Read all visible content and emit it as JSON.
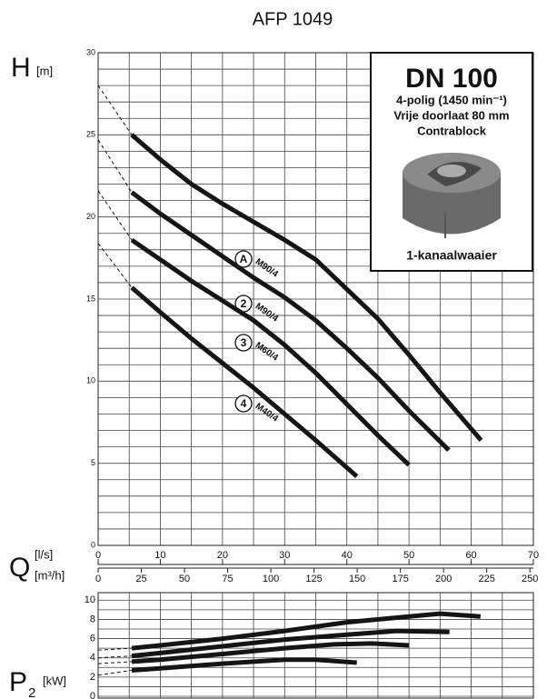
{
  "chart_data": [
    {
      "type": "line",
      "title": "AFP 1049",
      "ylabel": "H",
      "ylabel_unit": "[m]",
      "xlabel": "Q",
      "xlabel_unit": "[l/s]",
      "x2label_unit": "[m³/h]",
      "xlim": [
        0,
        70
      ],
      "xticks": [
        0,
        10,
        20,
        30,
        40,
        50,
        60,
        70
      ],
      "x2lim": [
        0,
        252
      ],
      "x2ticks": [
        0,
        25,
        50,
        75,
        100,
        125,
        150,
        175,
        200,
        225,
        250
      ],
      "ylim": [
        0,
        30
      ],
      "yticks": [
        0,
        5,
        10,
        15,
        20,
        25,
        30
      ],
      "xgrid": [
        0,
        5,
        10,
        15,
        20,
        25,
        30,
        35,
        40,
        45,
        50,
        55,
        60,
        65,
        70
      ],
      "ygrid": [
        0,
        1,
        2,
        3,
        4,
        5,
        6,
        7,
        8,
        9,
        10,
        11,
        12,
        13,
        14,
        15,
        16,
        17,
        18,
        19,
        20,
        21,
        22,
        23,
        24,
        25,
        26,
        27,
        28,
        29,
        30
      ],
      "inset": {
        "title": "DN 100",
        "lines": [
          "4-polig (1450 min⁻¹)",
          "Vrije doorlaat 80 mm",
          "Contrablock"
        ],
        "caption": "1-kanaalwaaier"
      },
      "series": [
        {
          "name": "A",
          "label": "M90/4",
          "color": "#151515",
          "x": [
            5.4,
            10,
            15,
            20,
            25,
            30,
            35,
            40,
            45,
            50,
            55,
            61.6
          ],
          "values": [
            25,
            23.5,
            22,
            20.8,
            19.7,
            18.6,
            17.4,
            15.6,
            13.8,
            11.6,
            9.3,
            6.4
          ],
          "extension": {
            "x": [
              0,
              5.4
            ],
            "values": [
              28,
              25
            ]
          }
        },
        {
          "name": "2",
          "label": "M90/4",
          "color": "#151515",
          "x": [
            5.4,
            10,
            15,
            20,
            25,
            30,
            35,
            40,
            45,
            50,
            56.4
          ],
          "values": [
            21.5,
            20.2,
            18.9,
            17.6,
            16.3,
            15.1,
            13.7,
            12,
            10.2,
            8.2,
            5.8
          ],
          "extension": {
            "x": [
              0,
              5.4
            ],
            "values": [
              24.7,
              21.5
            ]
          }
        },
        {
          "name": "3",
          "label": "M60/4",
          "color": "#151515",
          "x": [
            5.4,
            10,
            15,
            20,
            25,
            30,
            35,
            40,
            45,
            50
          ],
          "values": [
            18.6,
            17.4,
            16.1,
            14.9,
            13.7,
            12.2,
            10.5,
            8.6,
            6.7,
            4.9
          ],
          "extension": {
            "x": [
              0,
              5.4
            ],
            "values": [
              21.6,
              18.6
            ]
          }
        },
        {
          "name": "4",
          "label": "M40/4",
          "color": "#151515",
          "x": [
            5.4,
            10,
            15,
            20,
            25,
            30,
            35,
            41.6
          ],
          "values": [
            15.7,
            14.2,
            12.6,
            11.1,
            9.6,
            8,
            6.4,
            4.2
          ],
          "extension": {
            "x": [
              0,
              5.4
            ],
            "values": [
              18.4,
              15.7
            ]
          }
        }
      ]
    },
    {
      "type": "line",
      "ylabel": "P",
      "ylabel_sub": "2",
      "ylabel_unit": "[kW]",
      "xlim": [
        0,
        70
      ],
      "ylim": [
        0,
        10.5
      ],
      "yticks": [
        0,
        2,
        4,
        6,
        8,
        10
      ],
      "xgrid": [
        0,
        5,
        10,
        15,
        20,
        25,
        30,
        35,
        40,
        45,
        50,
        55,
        60,
        65,
        70
      ],
      "ygrid": [
        0,
        1,
        2,
        3,
        4,
        5,
        6,
        7,
        8,
        9,
        10
      ],
      "series": [
        {
          "color": "#151515",
          "x": [
            5.4,
            10,
            20,
            30,
            40,
            50,
            55,
            61.5
          ],
          "values": [
            5.0,
            5.3,
            6.0,
            6.8,
            7.7,
            8.3,
            8.6,
            8.3
          ],
          "extension": {
            "x": [
              0,
              5.4
            ],
            "values": [
              4.8,
              5.0
            ]
          }
        },
        {
          "color": "#151515",
          "x": [
            5.4,
            10,
            20,
            30,
            40,
            48,
            56.5
          ],
          "values": [
            4.2,
            4.5,
            5.2,
            5.9,
            6.4,
            6.8,
            6.7
          ],
          "extension": {
            "x": [
              0,
              5.4
            ],
            "values": [
              4.0,
              4.2
            ]
          }
        },
        {
          "color": "#151515",
          "x": [
            5.4,
            10,
            20,
            30,
            38,
            44,
            50
          ],
          "values": [
            3.6,
            3.8,
            4.4,
            5.0,
            5.4,
            5.5,
            5.3
          ],
          "extension": {
            "x": [
              0,
              5.4
            ],
            "values": [
              3.4,
              3.6
            ]
          }
        },
        {
          "color": "#151515",
          "x": [
            5.4,
            10,
            20,
            30,
            35,
            41.6
          ],
          "values": [
            2.7,
            2.9,
            3.4,
            3.8,
            3.8,
            3.5
          ],
          "extension": {
            "x": [
              0,
              5.4
            ],
            "values": [
              2.2,
              2.7
            ]
          }
        }
      ]
    }
  ]
}
